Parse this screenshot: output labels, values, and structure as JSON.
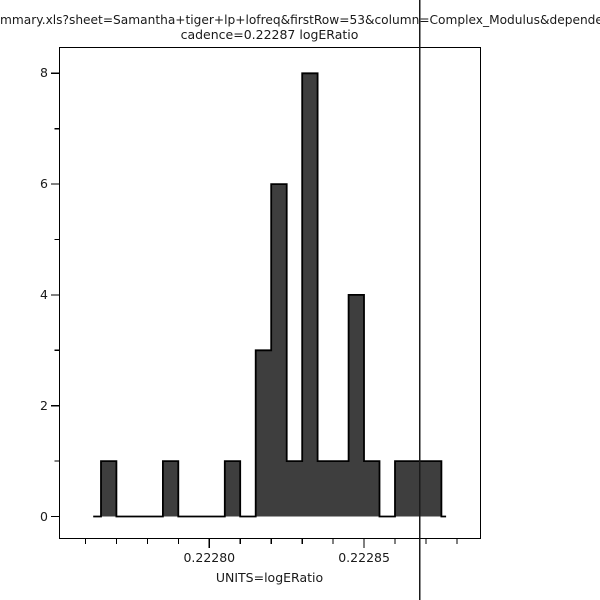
{
  "title": {
    "line1": "mmary.xls?sheet=Samantha+tiger+lp+lofreq&firstRow=53&column=Complex_Modulus&depende",
    "line2": "cadence=0.22287 logERatio"
  },
  "chart_data": {
    "type": "bar",
    "subtype": "histogram-stepfilled",
    "title": "cadence=0.22287 logERatio",
    "xlabel": "UNITS=logERatio",
    "ylabel": "",
    "background_color": "#ffffff",
    "bar_fill_color": "#3e3e3e",
    "bar_edge_color": "#000000",
    "marker_line_color": "#1a1a1a",
    "xlim": [
      0.222752,
      0.222888
    ],
    "ylim": [
      -0.4,
      8.47
    ],
    "grid": "off",
    "legend": "none",
    "x_ticks": {
      "minor_values": [
        0.22276,
        0.22277,
        0.22278,
        0.22279,
        0.22281,
        0.22282,
        0.22283,
        0.22284,
        0.22286,
        0.22287,
        0.22288
      ],
      "major_values": [
        0.2228,
        0.22285
      ],
      "major_labels": [
        "0.22280",
        "0.22285"
      ]
    },
    "y_ticks": {
      "major_values": [
        0,
        2,
        4,
        6,
        8
      ],
      "minor_values": [
        1,
        3,
        5,
        7
      ],
      "labels": [
        "0",
        "2",
        "4",
        "6",
        "8"
      ]
    },
    "bins": {
      "start": 0.222765,
      "width": 5e-06,
      "counts": [
        1,
        0,
        0,
        0,
        1,
        0,
        0,
        0,
        1,
        0,
        3,
        6,
        1,
        8,
        1,
        1,
        4,
        1,
        0,
        1,
        1,
        1
      ],
      "total_count": 31
    },
    "baseline_range": [
      0.2227625,
      0.2228765
    ],
    "cadence_marker_value": 0.222868
  }
}
